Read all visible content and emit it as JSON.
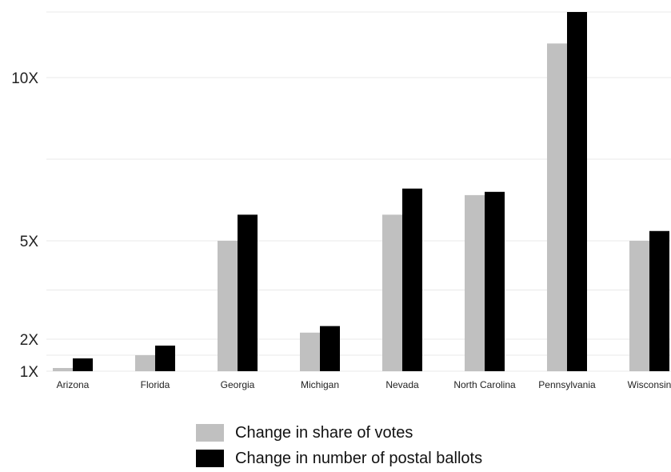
{
  "chart_data": {
    "type": "bar",
    "y_scale": "custom-nonlinear",
    "y_tick_labels": [
      "1X",
      "2X",
      "5X",
      "10X"
    ],
    "y_tick_values": [
      1,
      2,
      5,
      10
    ],
    "ylim": [
      1,
      12.5
    ],
    "grid": true,
    "legend_position": "bottom",
    "categories": [
      "Arizona",
      "Florida",
      "Georgia",
      "Michigan",
      "Nevada",
      "North Carolina",
      "Pennsylvania",
      "Wisconsin"
    ],
    "series": [
      {
        "name": "Change in share of votes",
        "color": "#c0c0c0",
        "values": [
          1.1,
          1.5,
          5.0,
          2.2,
          5.8,
          6.4,
          11.3,
          5.0
        ]
      },
      {
        "name": "Change in number of postal ballots",
        "color": "#000000",
        "values": [
          1.4,
          1.8,
          5.8,
          2.4,
          6.6,
          6.5,
          12.6,
          5.3
        ]
      }
    ]
  }
}
